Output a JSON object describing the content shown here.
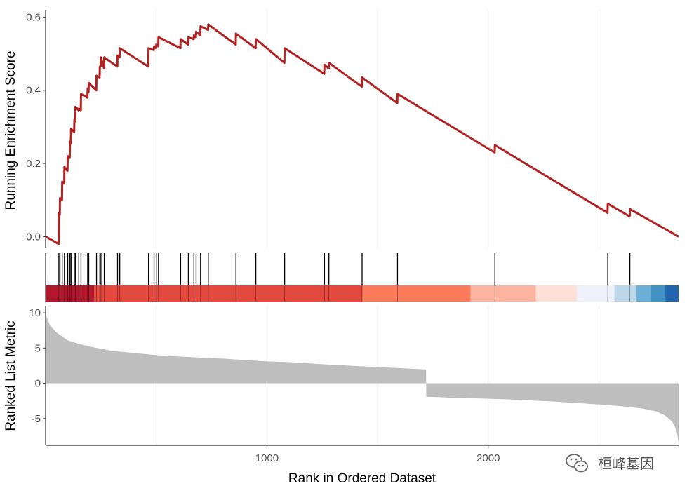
{
  "chart_data": {
    "type": "line",
    "colors": {
      "es_line": "#B22222",
      "grid": "#EBEBEB",
      "metric_fill": "#BEBEBE",
      "axis": "#000000",
      "hits": "#000000",
      "heat_palette": [
        "#B2182B",
        "#E34A3D",
        "#FB7B5B",
        "#FCB3A0",
        "#FEE0D6",
        "#EEF0FA",
        "#BED8EB",
        "#6BAED6",
        "#2166AC"
      ]
    },
    "xlim": [
      0,
      2860
    ],
    "xlabel": "Rank in Ordered Dataset",
    "xticks": [
      1000,
      2000
    ],
    "xtick_labels": [
      "1000",
      "2000"
    ],
    "panels": {
      "es": {
        "ylabel": "Running Enrichment Score",
        "ylim": [
          -0.03,
          0.62
        ],
        "yticks": [
          0.0,
          0.2,
          0.4,
          0.6
        ],
        "ytick_labels": [
          "0.0",
          "0.2",
          "0.4",
          "0.6"
        ],
        "hits": [
          60,
          65,
          75,
          85,
          100,
          110,
          115,
          130,
          135,
          150,
          160,
          190,
          195,
          230,
          245,
          250,
          265,
          325,
          335,
          465,
          490,
          500,
          510,
          610,
          645,
          670,
          680,
          700,
          735,
          860,
          950,
          1080,
          1260,
          1280,
          1430,
          1590,
          2030,
          2540,
          2640
        ],
        "x": [
          0,
          59,
          60,
          64,
          65,
          74,
          75,
          84,
          85,
          99,
          100,
          109,
          110,
          114,
          115,
          129,
          130,
          134,
          135,
          149,
          150,
          159,
          160,
          189,
          190,
          194,
          195,
          229,
          230,
          244,
          245,
          249,
          250,
          264,
          265,
          324,
          325,
          334,
          335,
          464,
          465,
          489,
          490,
          499,
          500,
          509,
          510,
          609,
          610,
          644,
          645,
          669,
          670,
          679,
          680,
          699,
          700,
          734,
          735,
          859,
          860,
          949,
          950,
          1079,
          1080,
          1259,
          1260,
          1279,
          1280,
          1429,
          1430,
          1589,
          1590,
          2029,
          2030,
          2539,
          2540,
          2639,
          2640,
          2860
        ],
        "y": [
          0.0,
          -0.02,
          0.065,
          0.06,
          0.105,
          0.1,
          0.15,
          0.145,
          0.19,
          0.18,
          0.22,
          0.215,
          0.26,
          0.255,
          0.295,
          0.285,
          0.32,
          0.315,
          0.355,
          0.345,
          0.35,
          0.345,
          0.39,
          0.38,
          0.405,
          0.395,
          0.42,
          0.4,
          0.44,
          0.435,
          0.465,
          0.465,
          0.49,
          0.46,
          0.49,
          0.465,
          0.495,
          0.49,
          0.515,
          0.465,
          0.515,
          0.51,
          0.52,
          0.515,
          0.525,
          0.52,
          0.545,
          0.515,
          0.54,
          0.525,
          0.545,
          0.54,
          0.55,
          0.545,
          0.56,
          0.55,
          0.575,
          0.565,
          0.58,
          0.525,
          0.555,
          0.515,
          0.54,
          0.475,
          0.515,
          0.445,
          0.47,
          0.46,
          0.475,
          0.41,
          0.435,
          0.365,
          0.39,
          0.23,
          0.25,
          0.065,
          0.09,
          0.055,
          0.075,
          0.0
        ]
      },
      "heat": {
        "segments": [
          {
            "from": 0,
            "to": 220,
            "color": "#B2182B"
          },
          {
            "from": 220,
            "to": 1430,
            "color": "#E34A3D"
          },
          {
            "from": 1430,
            "to": 1920,
            "color": "#FB7B5B"
          },
          {
            "from": 1920,
            "to": 2215,
            "color": "#FCB3A0"
          },
          {
            "from": 2215,
            "to": 2400,
            "color": "#FEE0D6"
          },
          {
            "from": 2400,
            "to": 2570,
            "color": "#EEF0FA"
          },
          {
            "from": 2570,
            "to": 2670,
            "color": "#BED8EB"
          },
          {
            "from": 2670,
            "to": 2735,
            "color": "#6BAED6"
          },
          {
            "from": 2735,
            "to": 2800,
            "color": "#4292C6"
          },
          {
            "from": 2800,
            "to": 2860,
            "color": "#2166AC"
          }
        ]
      },
      "metric": {
        "ylabel": "Ranked List Metric",
        "ylim": [
          -8.8,
          11
        ],
        "yticks": [
          -5,
          0,
          5,
          10
        ],
        "ytick_labels": [
          "-5",
          "0",
          "5",
          "10"
        ],
        "x": [
          0,
          20,
          50,
          100,
          150,
          200,
          300,
          400,
          500,
          600,
          700,
          800,
          900,
          1000,
          1100,
          1200,
          1300,
          1400,
          1500,
          1600,
          1700,
          1719,
          1720,
          1800,
          1900,
          2000,
          2100,
          2200,
          2300,
          2400,
          2500,
          2600,
          2700,
          2760,
          2800,
          2830,
          2850,
          2860
        ],
        "y": [
          9.8,
          8.2,
          7.2,
          6.1,
          5.6,
          5.2,
          4.6,
          4.3,
          4.0,
          3.8,
          3.65,
          3.5,
          3.3,
          3.1,
          3.0,
          2.8,
          2.6,
          2.45,
          2.3,
          2.15,
          2.0,
          1.95,
          -1.9,
          -2.0,
          -2.1,
          -2.2,
          -2.3,
          -2.45,
          -2.6,
          -2.8,
          -3.0,
          -3.25,
          -3.6,
          -4.0,
          -4.6,
          -5.4,
          -6.6,
          -8.4
        ]
      }
    }
  },
  "watermark": {
    "text": "桓峰基因",
    "icon": "wechat-icon"
  }
}
